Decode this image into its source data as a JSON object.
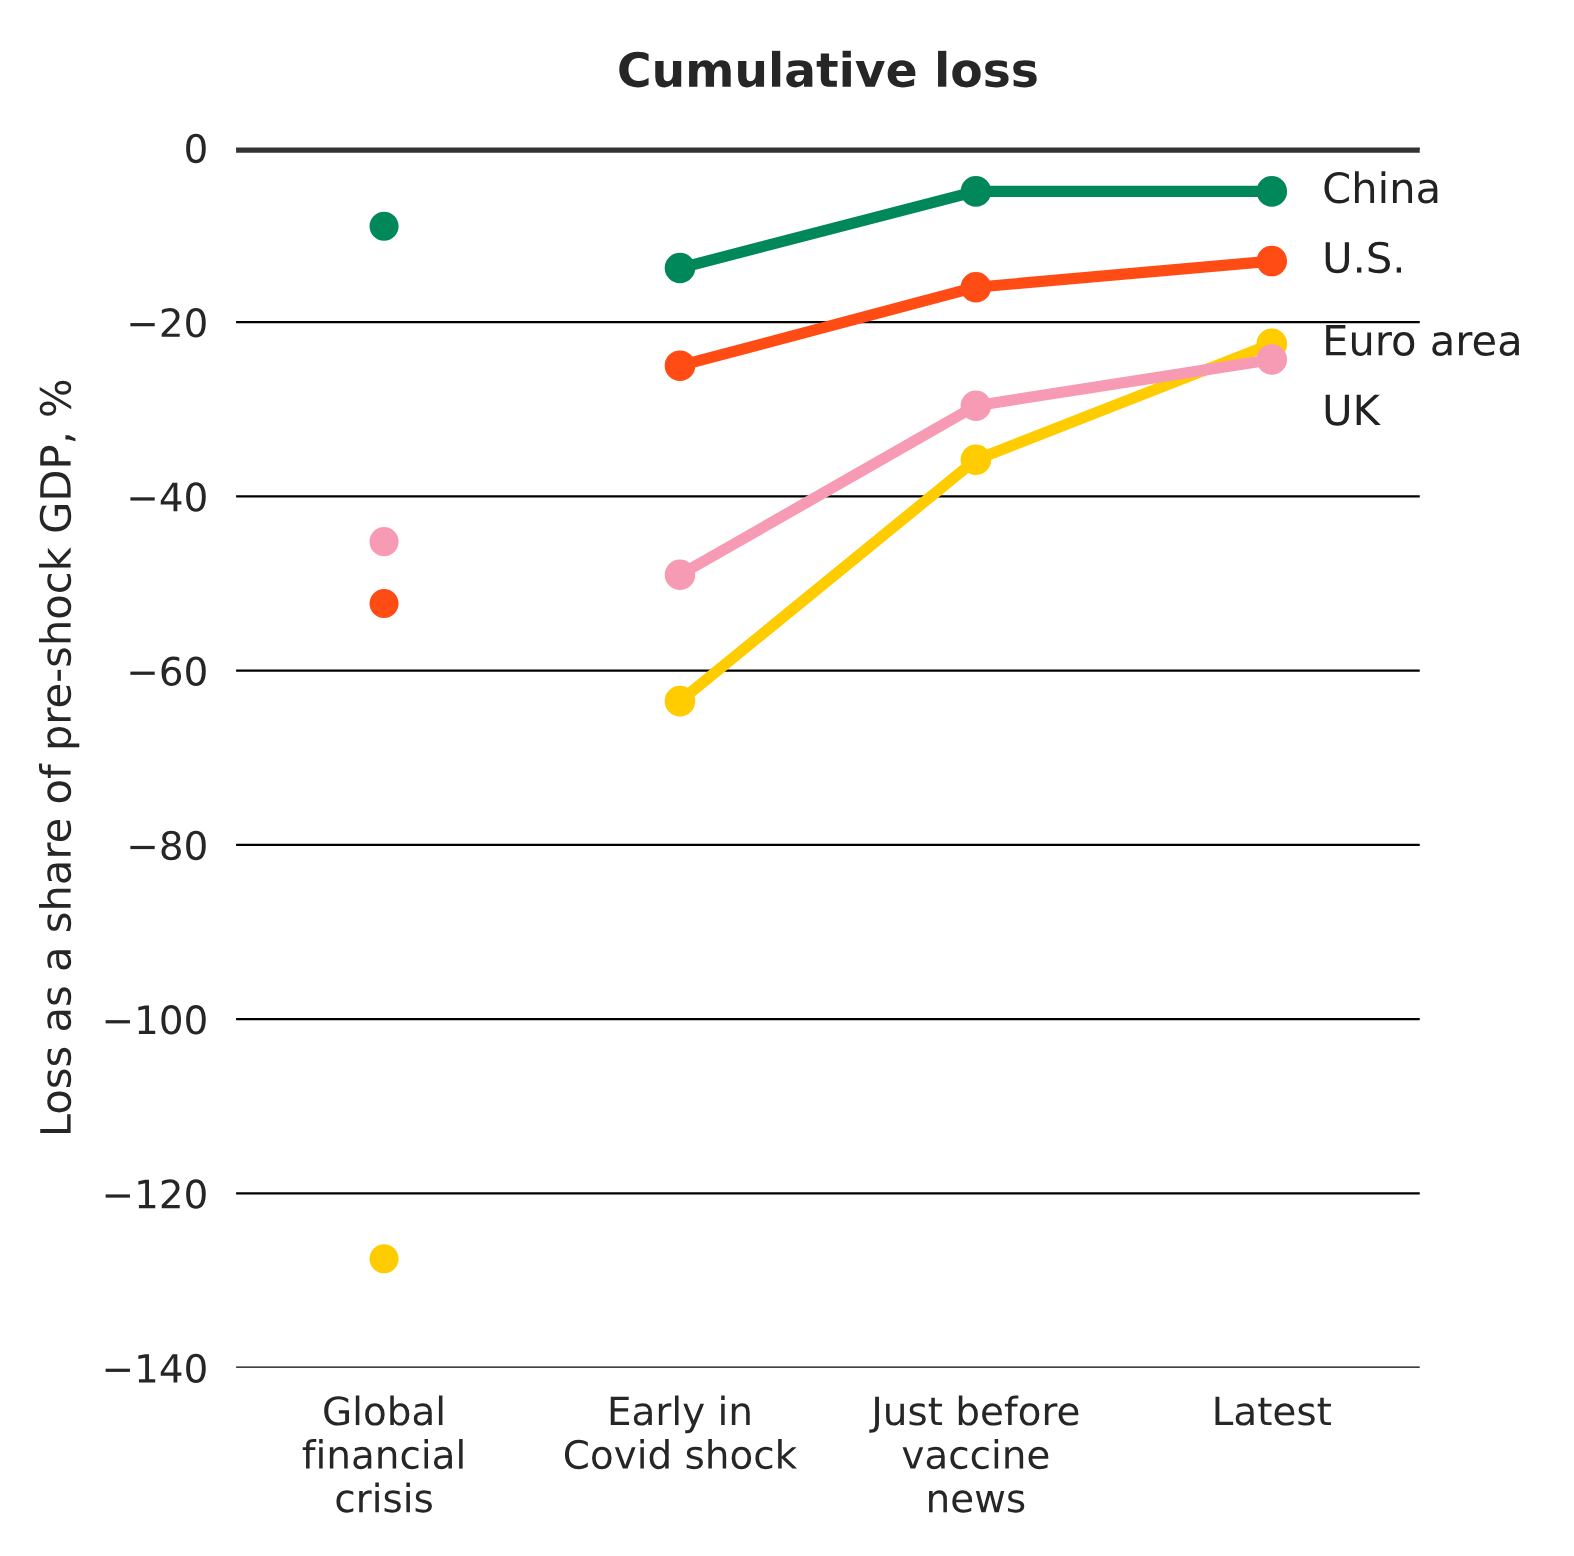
{
  "chart_data": {
    "type": "line",
    "title": "Cumulative loss",
    "ylabel": "Loss as a share of pre-shock GDP, %",
    "categories": [
      "Global\nfinancial\ncrisis",
      "Early in\nCovid shock",
      "Just before\nvaccine\nnews",
      "Latest"
    ],
    "ylim": [
      -140,
      0
    ],
    "yticks": [
      {
        "value": 0,
        "label": "0"
      },
      {
        "value": -20,
        "label": "−20"
      },
      {
        "value": -40,
        "label": "−40"
      },
      {
        "value": -60,
        "label": "−60"
      },
      {
        "value": -80,
        "label": "−80"
      },
      {
        "value": -100,
        "label": "−100"
      },
      {
        "value": -120,
        "label": "−120"
      },
      {
        "value": -140,
        "label": "−140"
      }
    ],
    "grid": "y",
    "marker": "circle",
    "legend": false,
    "ref_lines": [
      {
        "axis": "y",
        "value": 0,
        "color": "#333333"
      }
    ],
    "series": [
      {
        "name": "China",
        "color": "#00875a",
        "values": [
          null,
          -13.8,
          -5,
          -5
        ]
      },
      {
        "name": "U.S.",
        "color": "#ff4b14",
        "values": [
          null,
          -25,
          -16,
          -13
        ]
      },
      {
        "name": "Euro area",
        "color": "#ffcc00",
        "values": [
          null,
          -63.5,
          -35.8,
          -22.5
        ]
      },
      {
        "name": "UK",
        "color": "#f79bb5",
        "values": [
          null,
          -49,
          -29.6,
          -24.3
        ]
      },
      {
        "type": "scatter",
        "color": "#00875a",
        "x": [
          "Global\nfinancial\ncrisis"
        ],
        "values": [
          -9
        ]
      },
      {
        "type": "scatter",
        "color": "#ff4b14",
        "x": [
          "Global\nfinancial\ncrisis"
        ],
        "values": [
          -52.3
        ]
      },
      {
        "type": "scatter",
        "color": "#ffcc00",
        "x": [
          "Global\nfinancial\ncrisis"
        ],
        "values": [
          -127.5
        ]
      },
      {
        "type": "scatter",
        "color": "#f79bb5",
        "x": [
          "Global\nfinancial\ncrisis"
        ],
        "values": [
          -45.2
        ]
      }
    ]
  }
}
